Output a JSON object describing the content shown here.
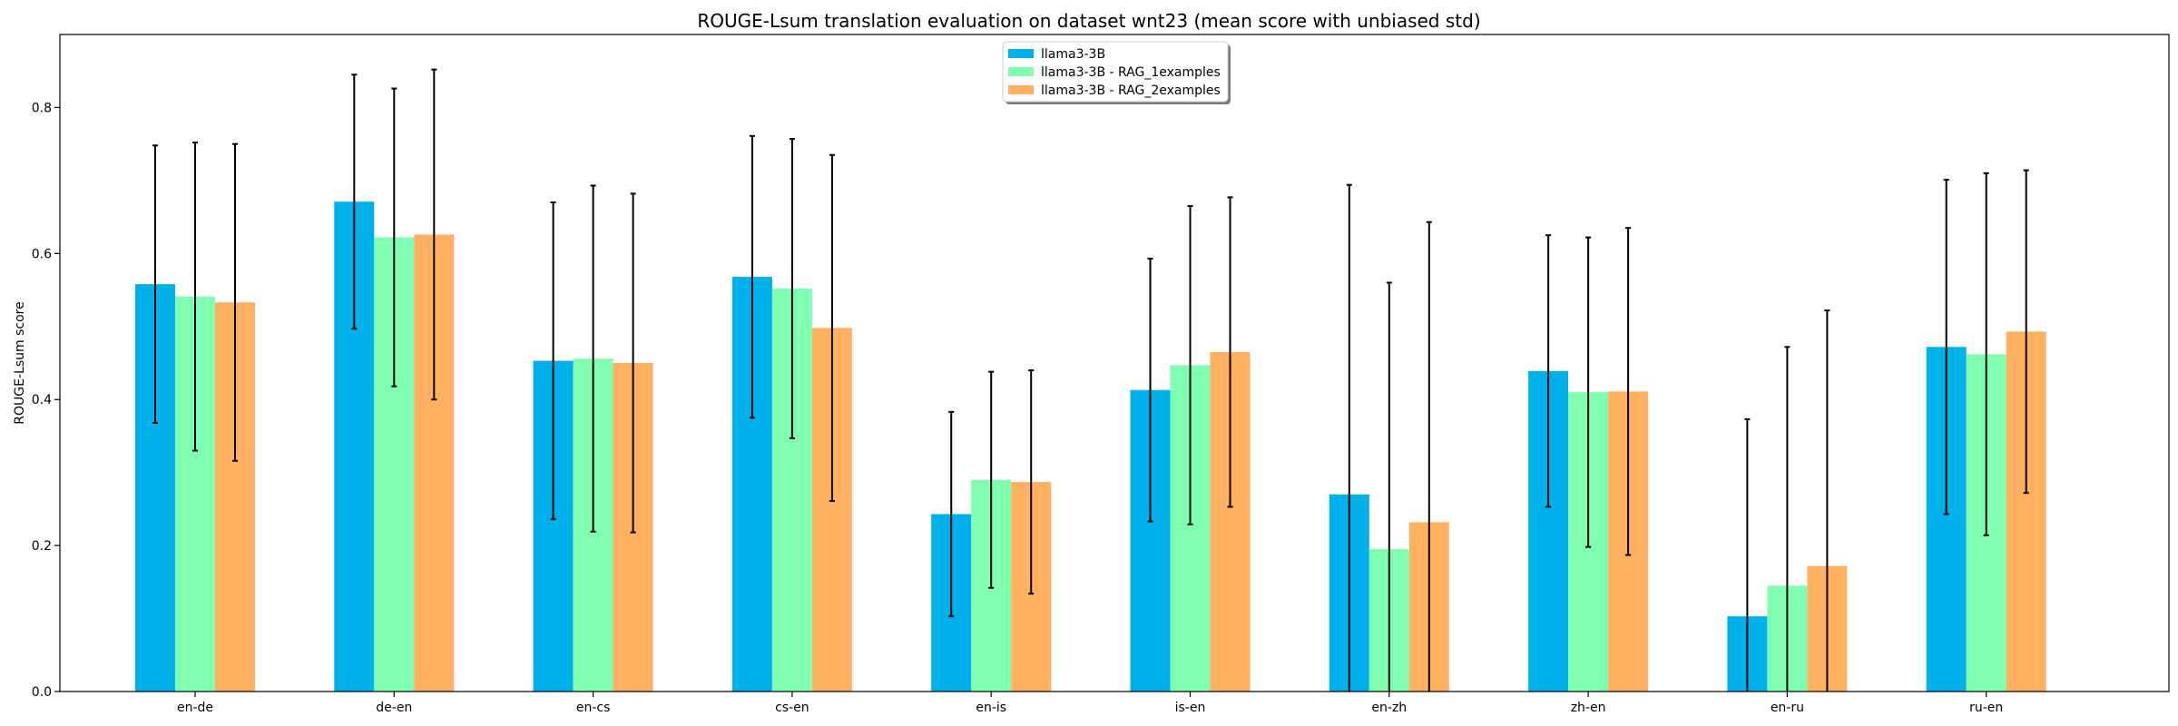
{
  "chart_data": {
    "type": "bar",
    "title": "ROUGE-Lsum translation evaluation on dataset wnt23 (mean score with unbiased std)",
    "xlabel": "",
    "ylabel": "ROUGE-Lsum score",
    "ylim": [
      0,
      0.9
    ],
    "yticks": [
      0.0,
      0.2,
      0.4,
      0.6,
      0.8
    ],
    "ytick_labels": [
      "0.0",
      "0.2",
      "0.4",
      "0.6",
      "0.8"
    ],
    "grid": false,
    "legend_position": "top-center",
    "categories": [
      "en-de",
      "de-en",
      "en-cs",
      "cs-en",
      "en-is",
      "is-en",
      "en-zh",
      "zh-en",
      "en-ru",
      "ru-en"
    ],
    "series": [
      {
        "name": "llama3-3B",
        "color": "#00b0e8",
        "values": [
          0.558,
          0.671,
          0.453,
          0.568,
          0.243,
          0.413,
          0.27,
          0.439,
          0.103,
          0.472
        ],
        "errors": [
          0.19,
          0.174,
          0.217,
          0.193,
          0.14,
          0.18,
          0.424,
          0.186,
          0.27,
          0.229
        ]
      },
      {
        "name": "llama3-3B - RAG_1examples",
        "color": "#80ffb0",
        "values": [
          0.541,
          0.622,
          0.456,
          0.552,
          0.29,
          0.447,
          0.195,
          0.41,
          0.145,
          0.462
        ],
        "errors": [
          0.211,
          0.204,
          0.237,
          0.205,
          0.148,
          0.218,
          0.365,
          0.212,
          0.327,
          0.248
        ]
      },
      {
        "name": "llama3-3B - RAG_2examples",
        "color": "#ffb060",
        "values": [
          0.533,
          0.626,
          0.45,
          0.498,
          0.287,
          0.465,
          0.232,
          0.411,
          0.172,
          0.493
        ],
        "errors": [
          0.217,
          0.226,
          0.232,
          0.237,
          0.153,
          0.212,
          0.411,
          0.224,
          0.35,
          0.221
        ]
      }
    ]
  }
}
